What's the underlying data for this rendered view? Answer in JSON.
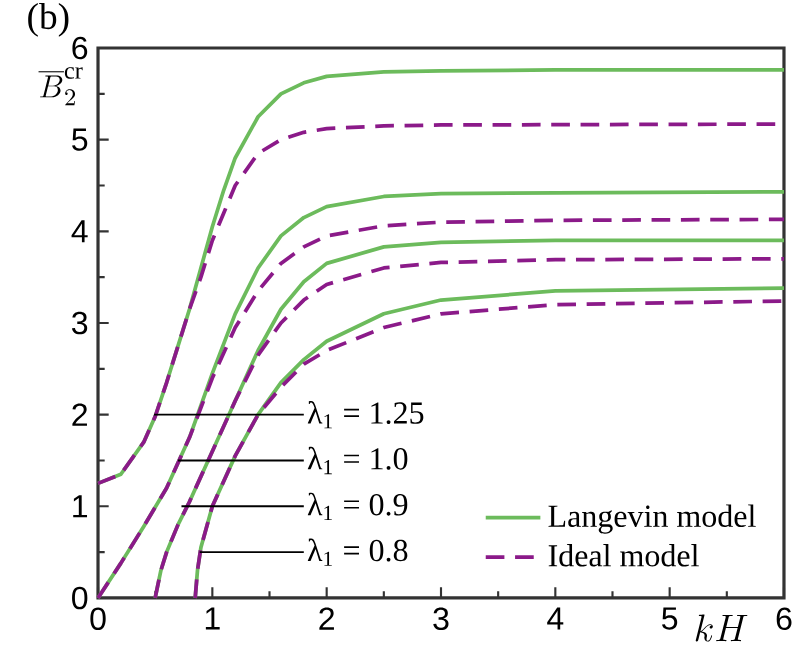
{
  "chart_data": {
    "type": "line",
    "title": "(b)",
    "xlabel": "kH",
    "ylabel": "\\overline{B}_2^{\\mathrm{cr}}",
    "xlim": [
      0,
      6
    ],
    "ylim": [
      0,
      6
    ],
    "xticks": [
      0,
      1,
      2,
      3,
      4,
      5,
      6
    ],
    "yticks": [
      0,
      1,
      2,
      3,
      4,
      5,
      6
    ],
    "legend": "bottom right",
    "grid": false,
    "series": [
      {
        "name": "Langevin model",
        "color": "#6cbb5c",
        "line_style": "solid",
        "x": [
          0,
          0.2,
          0.4,
          0.5,
          0.6,
          0.7,
          0.8,
          0.9,
          1.0,
          1.1,
          1.2,
          1.4,
          1.6,
          1.8,
          2.0,
          2.5,
          3,
          4,
          6
        ],
        "values": [
          1.25,
          1.35,
          1.7,
          1.98,
          2.35,
          2.75,
          3.15,
          3.6,
          4.05,
          4.45,
          4.8,
          5.25,
          5.5,
          5.62,
          5.69,
          5.74,
          5.75,
          5.76,
          5.76
        ]
      },
      {
        "name": "Ideal model",
        "color": "#8b1a89",
        "line_style": "dashed",
        "x": [
          0,
          0.2,
          0.4,
          0.5,
          0.6,
          0.7,
          0.8,
          0.9,
          1.0,
          1.1,
          1.2,
          1.4,
          1.6,
          1.8,
          2.0,
          2.5,
          3,
          6
        ],
        "values": [
          1.25,
          1.35,
          1.7,
          1.98,
          2.35,
          2.75,
          3.15,
          3.5,
          3.9,
          4.2,
          4.5,
          4.85,
          5.0,
          5.08,
          5.12,
          5.15,
          5.16,
          5.17
        ]
      },
      {
        "color": "#6cbb5c",
        "line_style": "solid",
        "x": [
          0,
          0.2,
          0.4,
          0.6,
          0.8,
          1.0,
          1.2,
          1.4,
          1.6,
          1.8,
          2.0,
          2.5,
          3,
          4,
          6
        ],
        "values": [
          0,
          0.38,
          0.78,
          1.2,
          1.75,
          2.45,
          3.1,
          3.6,
          3.95,
          4.15,
          4.27,
          4.38,
          4.41,
          4.42,
          4.43
        ]
      },
      {
        "color": "#8b1a89",
        "line_style": "dashed",
        "x": [
          0,
          0.2,
          0.4,
          0.6,
          0.8,
          1.0,
          1.2,
          1.4,
          1.6,
          1.8,
          2.0,
          2.5,
          3,
          4,
          6
        ],
        "values": [
          0,
          0.38,
          0.78,
          1.2,
          1.75,
          2.4,
          2.95,
          3.35,
          3.65,
          3.83,
          3.95,
          4.06,
          4.1,
          4.12,
          4.13
        ]
      },
      {
        "color": "#6cbb5c",
        "line_style": "solid",
        "x": [
          0.5,
          0.55,
          0.6,
          0.7,
          0.8,
          1.0,
          1.2,
          1.4,
          1.6,
          1.8,
          2.0,
          2.5,
          3,
          4,
          6
        ],
        "values": [
          0,
          0.3,
          0.5,
          0.8,
          1.05,
          1.6,
          2.15,
          2.7,
          3.15,
          3.45,
          3.65,
          3.83,
          3.88,
          3.9,
          3.9
        ]
      },
      {
        "color": "#8b1a89",
        "line_style": "dashed",
        "x": [
          0.5,
          0.55,
          0.6,
          0.7,
          0.8,
          1.0,
          1.2,
          1.4,
          1.6,
          1.8,
          2.0,
          2.5,
          3,
          4,
          6
        ],
        "values": [
          0,
          0.3,
          0.5,
          0.8,
          1.05,
          1.6,
          2.15,
          2.65,
          3.0,
          3.25,
          3.42,
          3.6,
          3.66,
          3.69,
          3.7
        ]
      },
      {
        "color": "#6cbb5c",
        "line_style": "solid",
        "x": [
          0.85,
          0.87,
          0.9,
          1.0,
          1.2,
          1.4,
          1.6,
          1.8,
          2.0,
          2.5,
          3,
          4,
          6
        ],
        "values": [
          0,
          0.3,
          0.55,
          1.0,
          1.55,
          2.0,
          2.35,
          2.6,
          2.8,
          3.1,
          3.25,
          3.35,
          3.38
        ]
      },
      {
        "color": "#8b1a89",
        "line_style": "dashed",
        "x": [
          0.85,
          0.87,
          0.9,
          1.0,
          1.2,
          1.4,
          1.6,
          1.8,
          2.0,
          2.5,
          3,
          4,
          6
        ],
        "values": [
          0,
          0.3,
          0.55,
          1.0,
          1.55,
          2.0,
          2.3,
          2.55,
          2.7,
          2.95,
          3.1,
          3.2,
          3.24
        ]
      }
    ],
    "annotations": [
      {
        "text": "λ$_{1}$ = 1.25",
        "x": 0.49,
        "y": 2.0
      },
      {
        "text": "λ$_{1}$ = 1.0",
        "x": 0.7,
        "y": 1.5
      },
      {
        "text": "λ$_{1}$ = 0.9",
        "x": 0.73,
        "y": 1.0
      },
      {
        "text": "λ$_{1}$ = 0.8",
        "x": 0.89,
        "y": 0.5
      }
    ]
  }
}
